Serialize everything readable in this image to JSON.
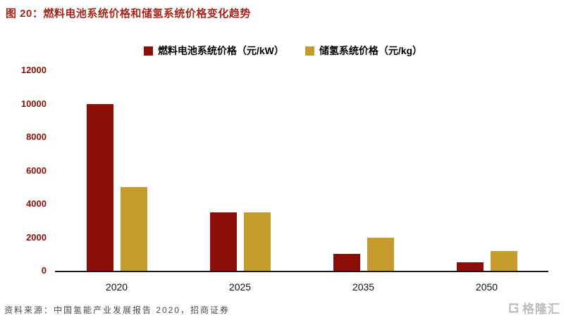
{
  "header": {
    "title": "图 20：燃料电池系统价格和储氢系统价格变化趋势"
  },
  "chart_data": {
    "type": "bar",
    "title": "燃料电池系统价格和储氢系统价格变化趋势",
    "categories": [
      "2020",
      "2025",
      "2035",
      "2050"
    ],
    "series": [
      {
        "name": "燃料电池系统价格（元/kW）",
        "color": "#8B0E08",
        "values": [
          10000,
          3500,
          1000,
          500
        ]
      },
      {
        "name": "储氢系统价格（元/kg）",
        "color": "#C49B2C",
        "values": [
          5000,
          3500,
          2000,
          1200
        ]
      }
    ],
    "xlabel": "",
    "ylabel": "",
    "ylim": [
      0,
      12000
    ],
    "ytick_step": 2000,
    "grid": false,
    "legend_position": "top"
  },
  "colors": {
    "title_red": "#A3261A",
    "axis_label_red": "#8B1209",
    "fuel_cell_bar": "#8B0E08",
    "hydrogen_storage_bar": "#C49B2C"
  },
  "footer": {
    "source": "资料来源：中国氢能产业发展报告 2020，招商证券"
  },
  "watermark": {
    "text": "格隆汇"
  }
}
